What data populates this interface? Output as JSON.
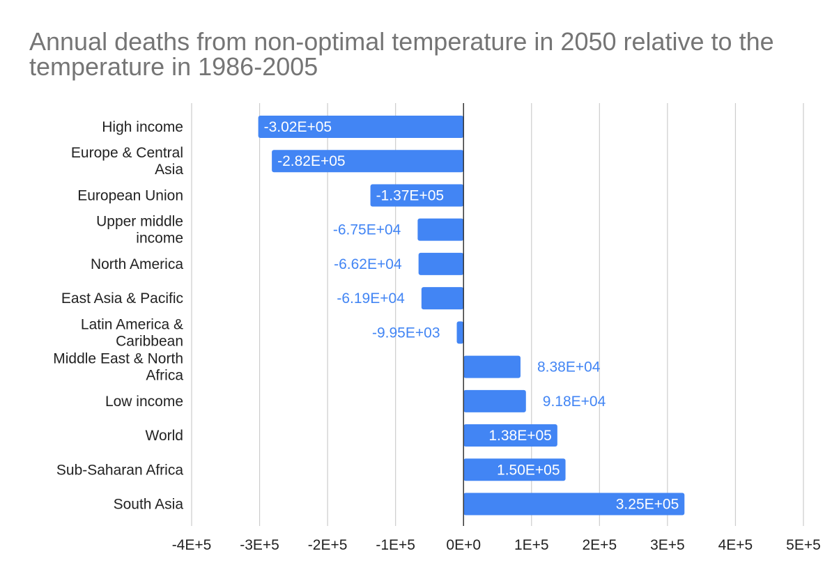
{
  "chart_data": {
    "type": "bar",
    "orientation": "horizontal",
    "title": "Annual deaths from non-optimal temperature in 2050 relative to the temperature in 1986-2005",
    "xlabel": "",
    "ylabel": "",
    "xlim": [
      -400000,
      500000
    ],
    "x_ticks": [
      -400000,
      -300000,
      -200000,
      -100000,
      0,
      100000,
      200000,
      300000,
      400000,
      500000
    ],
    "x_tick_labels": [
      "-4E+5",
      "-3E+5",
      "-2E+5",
      "-1E+5",
      "0E+0",
      "1E+5",
      "2E+5",
      "3E+5",
      "4E+5",
      "5E+5"
    ],
    "grid": true,
    "legend": "none",
    "bar_color": "#4285f4",
    "categories": [
      [
        "High income"
      ],
      [
        "Europe & Central",
        "Asia"
      ],
      [
        "European Union"
      ],
      [
        "Upper middle",
        "income"
      ],
      [
        "North America"
      ],
      [
        "East Asia & Pacific"
      ],
      [
        "Latin America &",
        "Caribbean"
      ],
      [
        "Middle East & North",
        "Africa"
      ],
      [
        "Low income"
      ],
      [
        "World"
      ],
      [
        "Sub-Saharan Africa"
      ],
      [
        "South Asia"
      ]
    ],
    "values": [
      -302000,
      -282000,
      -137000,
      -67500,
      -66200,
      -61900,
      -9950,
      83800,
      91800,
      138000,
      150000,
      325000
    ],
    "value_labels": [
      "-3.02E+05",
      "-2.82E+05",
      "-1.37E+05",
      "-6.75E+04",
      "-6.62E+04",
      "-6.19E+04",
      "-9.95E+03",
      "8.38E+04",
      "9.18E+04",
      "1.38E+05",
      "1.50E+05",
      "3.25E+05"
    ]
  }
}
